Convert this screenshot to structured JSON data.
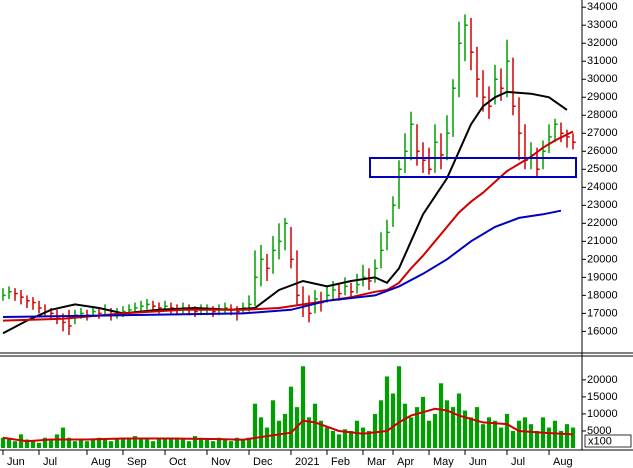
{
  "chart_data": [
    {
      "type": "hlc",
      "xlim": [
        -0.5,
        96.5
      ],
      "ylim": [
        14800,
        34400
      ],
      "yticks": [
        16000,
        17000,
        18000,
        19000,
        20000,
        21000,
        22000,
        23000,
        24000,
        25000,
        26000,
        27000,
        28000,
        29000,
        30000,
        31000,
        32000,
        33000,
        34000
      ],
      "up_color": "#00a000",
      "down_color": "#d00000",
      "close": [
        18000,
        18200,
        18100,
        17900,
        17700,
        17600,
        17300,
        17100,
        17000,
        16800,
        16500,
        16300,
        16900,
        17000,
        16900,
        17100,
        17000,
        17200,
        16900,
        17000,
        17100,
        17200,
        17300,
        17400,
        17500,
        17400,
        17300,
        17400,
        17300,
        17200,
        17300,
        17200,
        17100,
        17200,
        17200,
        17100,
        17200,
        17300,
        17200,
        17100,
        17300,
        17500,
        19000,
        20000,
        19500,
        20500,
        21000,
        22000,
        20000,
        18000,
        17500,
        17000,
        17800,
        17600,
        18000,
        18300,
        18100,
        18500,
        18200,
        18600,
        19000,
        18800,
        19500,
        20500,
        21500,
        23000,
        25000,
        26000,
        27500,
        26000,
        25500,
        25000,
        26500,
        25800,
        27000,
        29500,
        32000,
        33000,
        31500,
        30000,
        29000,
        28500,
        30000,
        29500,
        31000,
        28500,
        27000,
        25500,
        25800,
        25000,
        26000,
        26800,
        27500,
        27000,
        26800,
        26500
      ],
      "high": [
        18400,
        18500,
        18400,
        18300,
        18000,
        17900,
        17700,
        17500,
        17300,
        17200,
        17000,
        17200,
        17200,
        17300,
        17200,
        17400,
        17300,
        17500,
        17300,
        17300,
        17400,
        17500,
        17600,
        17700,
        17800,
        17700,
        17600,
        17700,
        17600,
        17500,
        17600,
        17500,
        17400,
        17500,
        17500,
        17400,
        17500,
        17600,
        17500,
        17400,
        17600,
        18000,
        20500,
        20800,
        20300,
        21300,
        22000,
        22300,
        21800,
        20500,
        18500,
        18000,
        18300,
        18200,
        18500,
        18800,
        18600,
        19000,
        18700,
        19200,
        19700,
        19500,
        20000,
        21500,
        22200,
        23500,
        25500,
        27000,
        28200,
        27500,
        26500,
        26200,
        27500,
        27000,
        28000,
        30000,
        33200,
        33600,
        33400,
        31800,
        30500,
        29600,
        30800,
        30600,
        32200,
        31200,
        29000,
        27500,
        26500,
        26200,
        26600,
        27500,
        27800,
        27600,
        27200,
        27000
      ],
      "low": [
        17700,
        17800,
        17700,
        17500,
        17300,
        17200,
        17000,
        16800,
        16700,
        16400,
        16000,
        15800,
        16400,
        16700,
        16600,
        16800,
        16700,
        16900,
        16600,
        16700,
        16800,
        16900,
        17000,
        17100,
        17200,
        17100,
        17000,
        17100,
        17000,
        16900,
        17000,
        16900,
        16800,
        16900,
        16900,
        16800,
        16900,
        17000,
        16900,
        16600,
        17000,
        17100,
        17400,
        18500,
        18800,
        19200,
        20000,
        20500,
        19500,
        17500,
        16800,
        16500,
        17000,
        17100,
        17600,
        17800,
        17700,
        18000,
        17800,
        18100,
        18500,
        18300,
        18700,
        19500,
        20500,
        21800,
        22800,
        24800,
        25500,
        25200,
        24800,
        24700,
        24800,
        25000,
        25500,
        26800,
        29000,
        31000,
        30500,
        29000,
        28200,
        27800,
        28600,
        28800,
        29000,
        28000,
        25500,
        25000,
        25000,
        24600,
        25000,
        25900,
        26500,
        26500,
        26200,
        26100
      ],
      "series": [
        {
          "color": "#000000",
          "x": [
            0,
            4,
            8,
            12,
            16,
            20,
            26,
            32,
            38,
            42,
            46,
            50,
            54,
            58,
            62,
            64,
            66,
            68,
            70,
            72,
            74,
            76,
            78,
            80,
            82,
            84,
            88,
            91,
            94
          ],
          "values": [
            15900,
            16600,
            17200,
            17500,
            17300,
            17000,
            17200,
            17300,
            17200,
            17300,
            18300,
            18800,
            18500,
            18800,
            19000,
            18700,
            19500,
            21000,
            22500,
            23500,
            24500,
            26000,
            27500,
            28500,
            29000,
            29300,
            29200,
            29000,
            28300
          ]
        },
        {
          "color": "#d00000",
          "x": [
            0,
            10,
            20,
            30,
            40,
            46,
            52,
            58,
            62,
            64,
            66,
            68,
            70,
            72,
            74,
            76,
            78,
            80,
            82,
            84,
            86,
            88,
            90,
            92,
            95
          ],
          "values": [
            16600,
            16700,
            17000,
            17200,
            17200,
            17300,
            17600,
            17900,
            18200,
            18300,
            18700,
            19500,
            20200,
            21000,
            21800,
            22600,
            23200,
            23700,
            24300,
            24900,
            25300,
            25700,
            26200,
            26600,
            27100
          ]
        },
        {
          "color": "#0000c0",
          "x": [
            0,
            20,
            40,
            48,
            54,
            62,
            66,
            70,
            74,
            78,
            82,
            86,
            90,
            93
          ],
          "values": [
            16800,
            16900,
            17000,
            17200,
            17700,
            18000,
            18500,
            19200,
            20000,
            21000,
            21800,
            22300,
            22500,
            22700
          ]
        }
      ]
    },
    {
      "type": "bar",
      "xlim": [
        -0.5,
        96.5
      ],
      "ylim": [
        0,
        27000
      ],
      "yticks": [
        5000,
        10000,
        15000,
        20000
      ],
      "unit_label": "x100",
      "color": "#00a000",
      "xticks": [
        {
          "value": 0,
          "label": "Jun"
        },
        {
          "value": 6,
          "label": "Jul"
        },
        {
          "value": 14,
          "label": "Aug"
        },
        {
          "value": 20,
          "label": "Sep"
        },
        {
          "value": 27,
          "label": "Oct"
        },
        {
          "value": 34,
          "label": "Nov"
        },
        {
          "value": 41,
          "label": "Dec"
        },
        {
          "value": 48,
          "label": "2021"
        },
        {
          "value": 54,
          "label": "Feb"
        },
        {
          "value": 60,
          "label": "Mar"
        },
        {
          "value": 65,
          "label": "Apr"
        },
        {
          "value": 71,
          "label": "May"
        },
        {
          "value": 77,
          "label": "Jun"
        },
        {
          "value": 84,
          "label": "Jul"
        },
        {
          "value": 91,
          "label": "Aug"
        }
      ],
      "values": [
        3000,
        2500,
        2000,
        4000,
        2500,
        2000,
        1500,
        3000,
        2500,
        4000,
        6000,
        3000,
        2000,
        2500,
        2000,
        2500,
        3000,
        2500,
        2000,
        2500,
        3000,
        2500,
        3500,
        3000,
        2500,
        2000,
        3000,
        2500,
        2500,
        3000,
        2500,
        2000,
        3500,
        3000,
        2500,
        2000,
        3000,
        2500,
        2000,
        3000,
        2500,
        3000,
        13000,
        9000,
        6000,
        14000,
        8000,
        10000,
        18000,
        12000,
        24000,
        9000,
        13000,
        8000,
        6000,
        5000,
        4000,
        5500,
        5000,
        8000,
        6000,
        5000,
        10000,
        14000,
        21000,
        16000,
        24000,
        13000,
        9000,
        12000,
        15000,
        8000,
        10000,
        19000,
        14000,
        12000,
        16000,
        11000,
        9000,
        12000,
        7000,
        9000,
        8000,
        6000,
        10000,
        5000,
        8000,
        9000,
        7000,
        5000,
        9000,
        6000,
        8000,
        5000,
        7000,
        6000
      ],
      "series": [
        {
          "color": "#d00000",
          "x": [
            0,
            4,
            8,
            14,
            20,
            28,
            36,
            40,
            44,
            48,
            50,
            52,
            56,
            60,
            64,
            66,
            68,
            70,
            72,
            74,
            76,
            80,
            84,
            86,
            90,
            95
          ],
          "values": [
            3000,
            2000,
            2500,
            2500,
            2800,
            2800,
            2600,
            2400,
            3500,
            4500,
            8000,
            7500,
            5000,
            4200,
            5000,
            7500,
            9500,
            10500,
            11500,
            11000,
            9500,
            7500,
            7000,
            5000,
            4500,
            4000
          ]
        }
      ]
    }
  ]
}
